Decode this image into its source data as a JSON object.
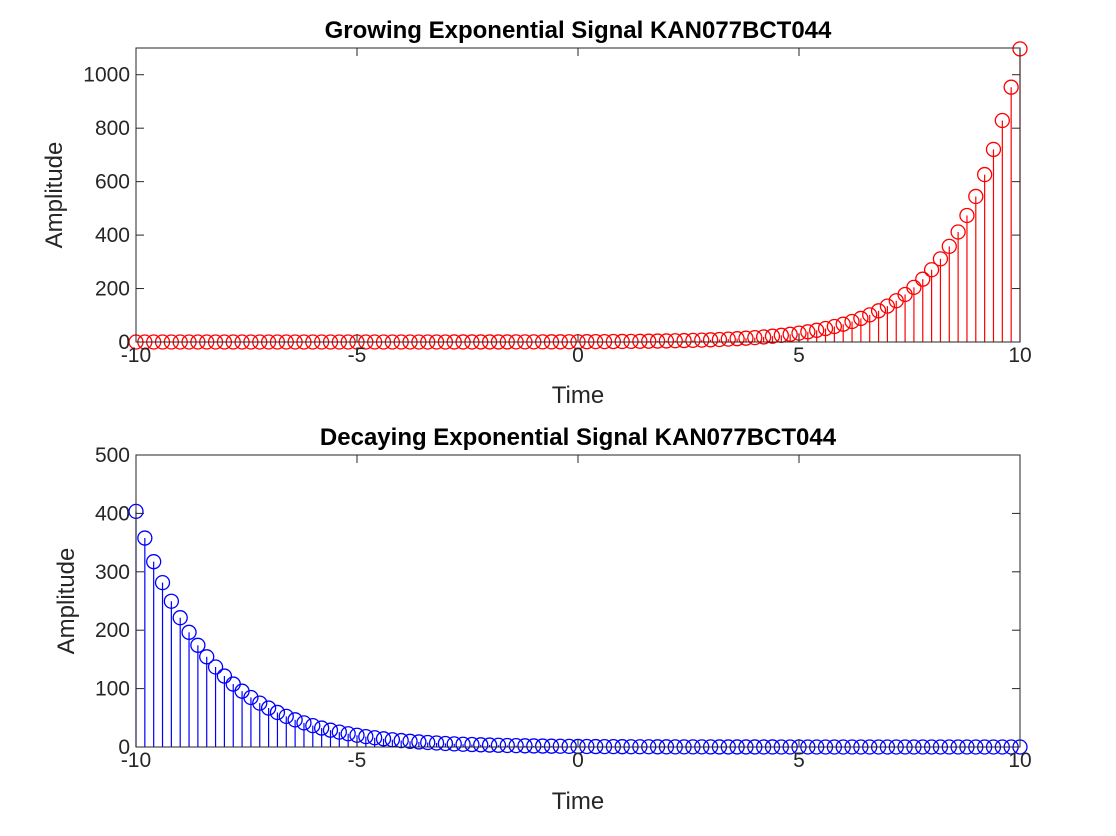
{
  "chart_data": [
    {
      "type": "stem",
      "title": "Growing Exponential Signal KAN077BCT044",
      "xlabel": "Time",
      "ylabel": "Amplitude",
      "xlim": [
        -10,
        10
      ],
      "ylim": [
        0,
        1100
      ],
      "xticks": [
        -10,
        -5,
        0,
        5,
        10
      ],
      "yticks": [
        0,
        200,
        400,
        600,
        800,
        1000
      ],
      "xtick_labels": [
        "-10",
        "-5",
        "0",
        "5",
        "10"
      ],
      "ytick_labels": [
        "0",
        "200",
        "400",
        "600",
        "800",
        "1000"
      ],
      "grid": false,
      "color": "#ff0000",
      "x_start": -10,
      "x_end": 10,
      "x_step": 0.2,
      "formula": "exp(0.7*t)"
    },
    {
      "type": "stem",
      "title": "Decaying Exponential Signal KAN077BCT044",
      "xlabel": "Time",
      "ylabel": "Amplitude",
      "xlim": [
        -10,
        10
      ],
      "ylim": [
        0,
        500
      ],
      "xticks": [
        -10,
        -5,
        0,
        5,
        10
      ],
      "yticks": [
        0,
        100,
        200,
        300,
        400,
        500
      ],
      "xtick_labels": [
        "-10",
        "-5",
        "0",
        "5",
        "10"
      ],
      "ytick_labels": [
        "0",
        "100",
        "200",
        "300",
        "400",
        "500"
      ],
      "grid": false,
      "color": "#0000ff",
      "x_start": -10,
      "x_end": 10,
      "x_step": 0.2,
      "formula": "exp(-0.6*t)"
    }
  ]
}
